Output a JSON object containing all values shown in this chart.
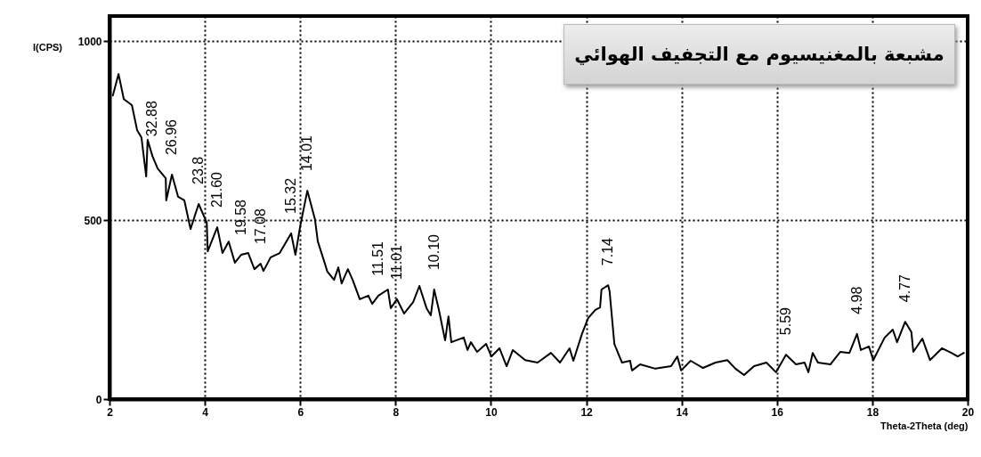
{
  "chart_data": {
    "type": "line",
    "title": "مشبعة بالمغنيسيوم مع التجفيف الهوائي",
    "xlabel": "Theta-2Theta (deg)",
    "ylabel": "I(CPS)",
    "xlim": [
      2,
      20
    ],
    "ylim": [
      0,
      1070
    ],
    "xticks": [
      2,
      4,
      6,
      8,
      10,
      12,
      14,
      16,
      18,
      20
    ],
    "yticks": [
      0,
      500,
      1000
    ],
    "grid": true,
    "series": [
      {
        "color": "#000000",
        "x": [
          2.07,
          2.19,
          2.3,
          2.47,
          2.58,
          2.67,
          2.77,
          2.8,
          2.9,
          3.01,
          3.18,
          3.19,
          3.31,
          3.44,
          3.57,
          3.7,
          3.87,
          4.04,
          4.06,
          4.26,
          4.37,
          4.5,
          4.63,
          4.76,
          4.91,
          5.04,
          5.17,
          5.23,
          5.38,
          5.57,
          5.81,
          5.9,
          6.0,
          6.15,
          6.31,
          6.37,
          6.5,
          6.57,
          6.71,
          6.8,
          6.87,
          7.0,
          7.1,
          7.25,
          7.43,
          7.51,
          7.64,
          7.84,
          7.9,
          8.03,
          8.18,
          8.37,
          8.5,
          8.65,
          8.74,
          8.81,
          8.91,
          9.04,
          9.11,
          9.17,
          9.43,
          9.51,
          9.58,
          9.71,
          9.9,
          10.01,
          10.18,
          10.33,
          10.46,
          10.72,
          10.98,
          11.26,
          11.45,
          11.65,
          11.73,
          11.91,
          12.04,
          12.19,
          12.29,
          12.32,
          12.46,
          12.49,
          12.59,
          12.75,
          12.92,
          12.96,
          13.13,
          13.45,
          13.78,
          13.91,
          13.99,
          14.19,
          14.45,
          14.71,
          14.96,
          15.13,
          15.31,
          15.52,
          15.78,
          15.98,
          16.19,
          16.4,
          16.58,
          16.66,
          16.75,
          16.86,
          17.12,
          17.33,
          17.52,
          17.68,
          17.76,
          17.93,
          18.02,
          18.26,
          18.43,
          18.52,
          18.69,
          18.82,
          18.86,
          19.05,
          19.21,
          19.46,
          19.66,
          19.79,
          19.92
        ],
        "values": [
          848,
          908,
          838,
          821,
          751,
          731,
          622,
          724,
          679,
          644,
          617,
          555,
          627,
          565,
          555,
          475,
          545,
          493,
          413,
          480,
          408,
          440,
          381,
          403,
          408,
          363,
          378,
          358,
          396,
          408,
          463,
          403,
          483,
          582,
          502,
          440,
          386,
          356,
          333,
          368,
          323,
          363,
          333,
          279,
          289,
          266,
          289,
          306,
          254,
          279,
          239,
          271,
          316,
          254,
          234,
          306,
          249,
          164,
          231,
          159,
          172,
          137,
          159,
          132,
          154,
          119,
          142,
          92,
          137,
          109,
          102,
          129,
          102,
          142,
          107,
          182,
          226,
          249,
          256,
          306,
          318,
          301,
          154,
          102,
          107,
          80,
          97,
          85,
          92,
          119,
          80,
          107,
          87,
          102,
          109,
          85,
          67,
          92,
          102,
          75,
          124,
          97,
          102,
          75,
          129,
          102,
          97,
          132,
          129,
          182,
          137,
          147,
          109,
          172,
          194,
          159,
          216,
          187,
          132,
          169,
          109,
          142,
          129,
          119,
          129
        ]
      }
    ],
    "annotations": [
      {
        "text": "32.88",
        "x": 2.9,
        "y": 679
      },
      {
        "text": "26.96",
        "x": 3.31,
        "y": 627
      },
      {
        "text": "23.8",
        "x": 3.87,
        "y": 545
      },
      {
        "text": "21.60",
        "x": 4.26,
        "y": 480
      },
      {
        "text": "19.58",
        "x": 4.76,
        "y": 403
      },
      {
        "text": "17.08",
        "x": 5.17,
        "y": 378
      },
      {
        "text": "15.32",
        "x": 5.81,
        "y": 463
      },
      {
        "text": "14.01",
        "x": 6.15,
        "y": 582
      },
      {
        "text": "11.51",
        "x": 7.64,
        "y": 289
      },
      {
        "text": "11.01",
        "x": 8.03,
        "y": 279
      },
      {
        "text": "10.10",
        "x": 8.81,
        "y": 306
      },
      {
        "text": "7.14",
        "x": 12.46,
        "y": 318
      },
      {
        "text": "5.59",
        "x": 16.19,
        "y": 124
      },
      {
        "text": "4.98",
        "x": 17.68,
        "y": 182
      },
      {
        "text": "4.77",
        "x": 18.69,
        "y": 216
      }
    ]
  }
}
